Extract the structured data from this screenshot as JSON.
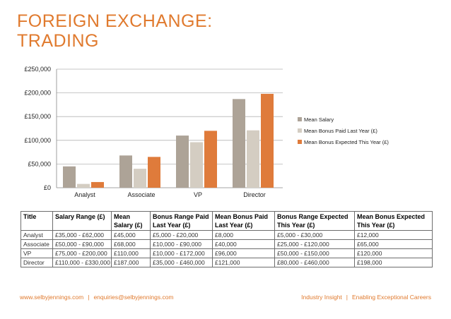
{
  "header": {
    "title_line1": "FOREIGN EXCHANGE:",
    "title_line2": "TRADING"
  },
  "colors": {
    "accent": "#e07a2e",
    "series": [
      "#ada397",
      "#d4cdc2",
      "#df7b3b"
    ]
  },
  "chart_data": {
    "type": "bar",
    "categories": [
      "Analyst",
      "Associate",
      "VP",
      "Director"
    ],
    "series": [
      {
        "name": "Mean Salary",
        "values": [
          45000,
          68000,
          110000,
          187000
        ]
      },
      {
        "name": "Mean Bonus Paid Last Year (£)",
        "values": [
          8000,
          40000,
          96000,
          121000
        ]
      },
      {
        "name": "Mean Bonus Expected This Year (£)",
        "values": [
          12000,
          65000,
          120000,
          198000
        ]
      }
    ],
    "ylim": [
      0,
      250000
    ],
    "yticks": [
      0,
      50000,
      100000,
      150000,
      200000,
      250000
    ],
    "ytick_labels": [
      "£0",
      "£50,000",
      "£100,000",
      "£150,000",
      "£200,000",
      "£250,000"
    ],
    "grid": true,
    "legend_position": "right"
  },
  "table": {
    "headers": [
      "Title",
      "Salary Range (£)",
      "Mean Salary (£)",
      "Bonus Range Paid Last Year (£)",
      "Mean Bonus Paid Last Year (£)",
      "Bonus Range Expected This Year (£)",
      "Mean Bonus Expected This Year (£)"
    ],
    "rows": [
      [
        "Analyst",
        "£35,000 - £62,000",
        "£45,000",
        "£5,000 - £20,000",
        "£8,000",
        "£5,000 - £30,000",
        "£12,000"
      ],
      [
        "Associate",
        "£50,000 - £90,000",
        "£68,000",
        "£10,000 - £90,000",
        "£40,000",
        "£25,000 - £120,000",
        "£65,000"
      ],
      [
        "VP",
        "£75,000 - £200,000",
        "£110,000",
        "£10,000 - £172,000",
        "£96,000",
        "£50,000 - £150,000",
        "£120,000"
      ],
      [
        "Director",
        "£110,000 - £330,000",
        "£187,000",
        "£35,000 - £460,000",
        "£121,000",
        "£80,000 - £460,000",
        "£198,000"
      ]
    ]
  },
  "footer": {
    "website": "www.selbyjennings.com",
    "email": "enquiries@selbyjennings.com",
    "tagline_left": "Industry Insight",
    "tagline_right": "Enabling Exceptional Careers",
    "separator": "|"
  }
}
